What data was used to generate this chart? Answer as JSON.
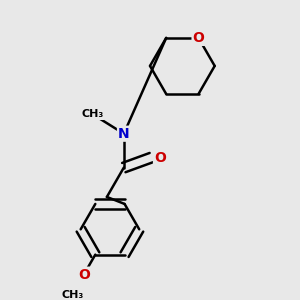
{
  "background_color": "#e8e8e8",
  "bond_color": "#000000",
  "N_color": "#0000cc",
  "O_color": "#cc0000",
  "bond_width": 1.8,
  "font_size_atoms": 10,
  "fig_width": 3.0,
  "fig_height": 3.0,
  "dpi": 100,
  "xlim": [
    0.05,
    0.95
  ],
  "ylim": [
    0.05,
    0.95
  ]
}
